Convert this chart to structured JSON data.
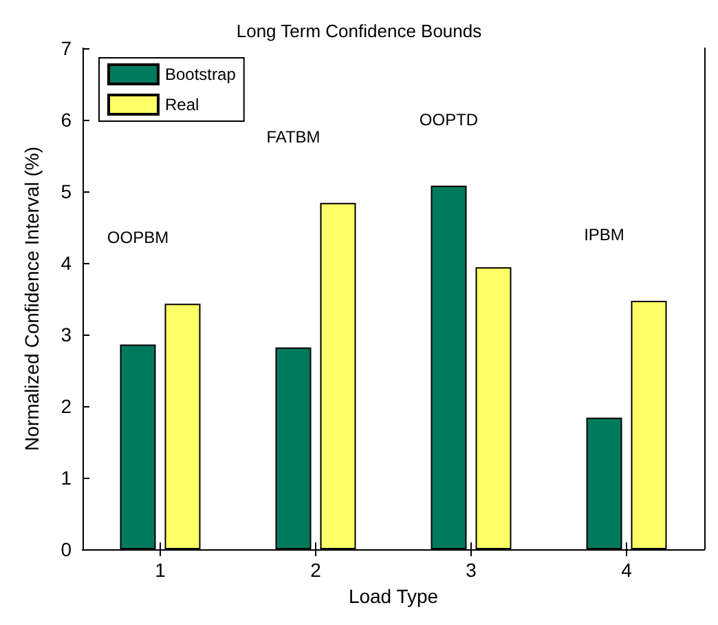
{
  "chart_data": {
    "type": "bar",
    "title": "Long Term Confidence Bounds",
    "xlabel": "Load Type",
    "ylabel": "Normalized Confidence Interval (%)",
    "categories": [
      "1",
      "2",
      "3",
      "4"
    ],
    "series": [
      {
        "name": "Bootstrap",
        "color": "#007a5e",
        "values": [
          2.86,
          2.82,
          5.08,
          1.84
        ]
      },
      {
        "name": "Real",
        "color": "#ffff66",
        "values": [
          3.43,
          4.84,
          3.94,
          3.47
        ]
      }
    ],
    "ylim": [
      0,
      7
    ],
    "yticks": [
      0,
      1,
      2,
      3,
      4,
      5,
      6,
      7
    ],
    "grid": false,
    "legend": "top left",
    "annotations": [
      "OOPBM",
      "FATBM",
      "OOPTD",
      "IPBM"
    ]
  }
}
